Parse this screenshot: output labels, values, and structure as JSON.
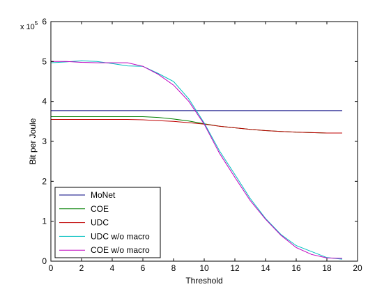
{
  "chart_data": {
    "type": "line",
    "xlabel": "Threshold",
    "ylabel": "Bit per Joule",
    "y_exponent_base": "x 10",
    "y_exponent_power": "5",
    "xlim": [
      0,
      20
    ],
    "ylim": [
      0,
      6
    ],
    "xticks": [
      "0",
      "2",
      "4",
      "6",
      "8",
      "10",
      "12",
      "14",
      "16",
      "18",
      "20"
    ],
    "yticks": [
      "0",
      "1",
      "2",
      "3",
      "4",
      "5",
      "6"
    ],
    "grid": false,
    "legend_position": "bottom-left",
    "x": [
      0,
      1,
      2,
      3,
      4,
      5,
      6,
      7,
      8,
      9,
      10,
      11,
      12,
      13,
      14,
      15,
      16,
      17,
      18,
      19
    ],
    "series": [
      {
        "name": "MoNet",
        "color": "#00007f",
        "values": [
          3.77,
          3.77,
          3.77,
          3.77,
          3.77,
          3.77,
          3.77,
          3.77,
          3.77,
          3.77,
          3.77,
          3.77,
          3.77,
          3.77,
          3.77,
          3.77,
          3.77,
          3.77,
          3.77,
          3.77
        ]
      },
      {
        "name": "COE",
        "color": "#007f00",
        "values": [
          3.62,
          3.62,
          3.62,
          3.62,
          3.62,
          3.62,
          3.62,
          3.6,
          3.56,
          3.51,
          3.44,
          3.38,
          3.34,
          3.3,
          3.27,
          3.25,
          3.23,
          3.22,
          3.21,
          3.21
        ]
      },
      {
        "name": "UDC",
        "color": "#bf0000",
        "values": [
          3.55,
          3.55,
          3.55,
          3.55,
          3.55,
          3.55,
          3.54,
          3.52,
          3.5,
          3.47,
          3.43,
          3.38,
          3.34,
          3.3,
          3.27,
          3.25,
          3.23,
          3.22,
          3.21,
          3.21
        ]
      },
      {
        "name": "UDC w/o macro",
        "color": "#00bfbf",
        "values": [
          4.97,
          4.99,
          5.02,
          5.0,
          4.95,
          4.89,
          4.88,
          4.7,
          4.5,
          4.06,
          3.46,
          2.76,
          2.17,
          1.57,
          1.07,
          0.67,
          0.39,
          0.24,
          0.09,
          0.05
        ]
      },
      {
        "name": "COE w/o macro",
        "color": "#bf00bf",
        "values": [
          5.0,
          5.0,
          4.98,
          4.97,
          4.97,
          4.97,
          4.88,
          4.68,
          4.41,
          4.0,
          3.43,
          2.7,
          2.1,
          1.52,
          1.05,
          0.65,
          0.34,
          0.17,
          0.08,
          0.07
        ]
      }
    ]
  }
}
